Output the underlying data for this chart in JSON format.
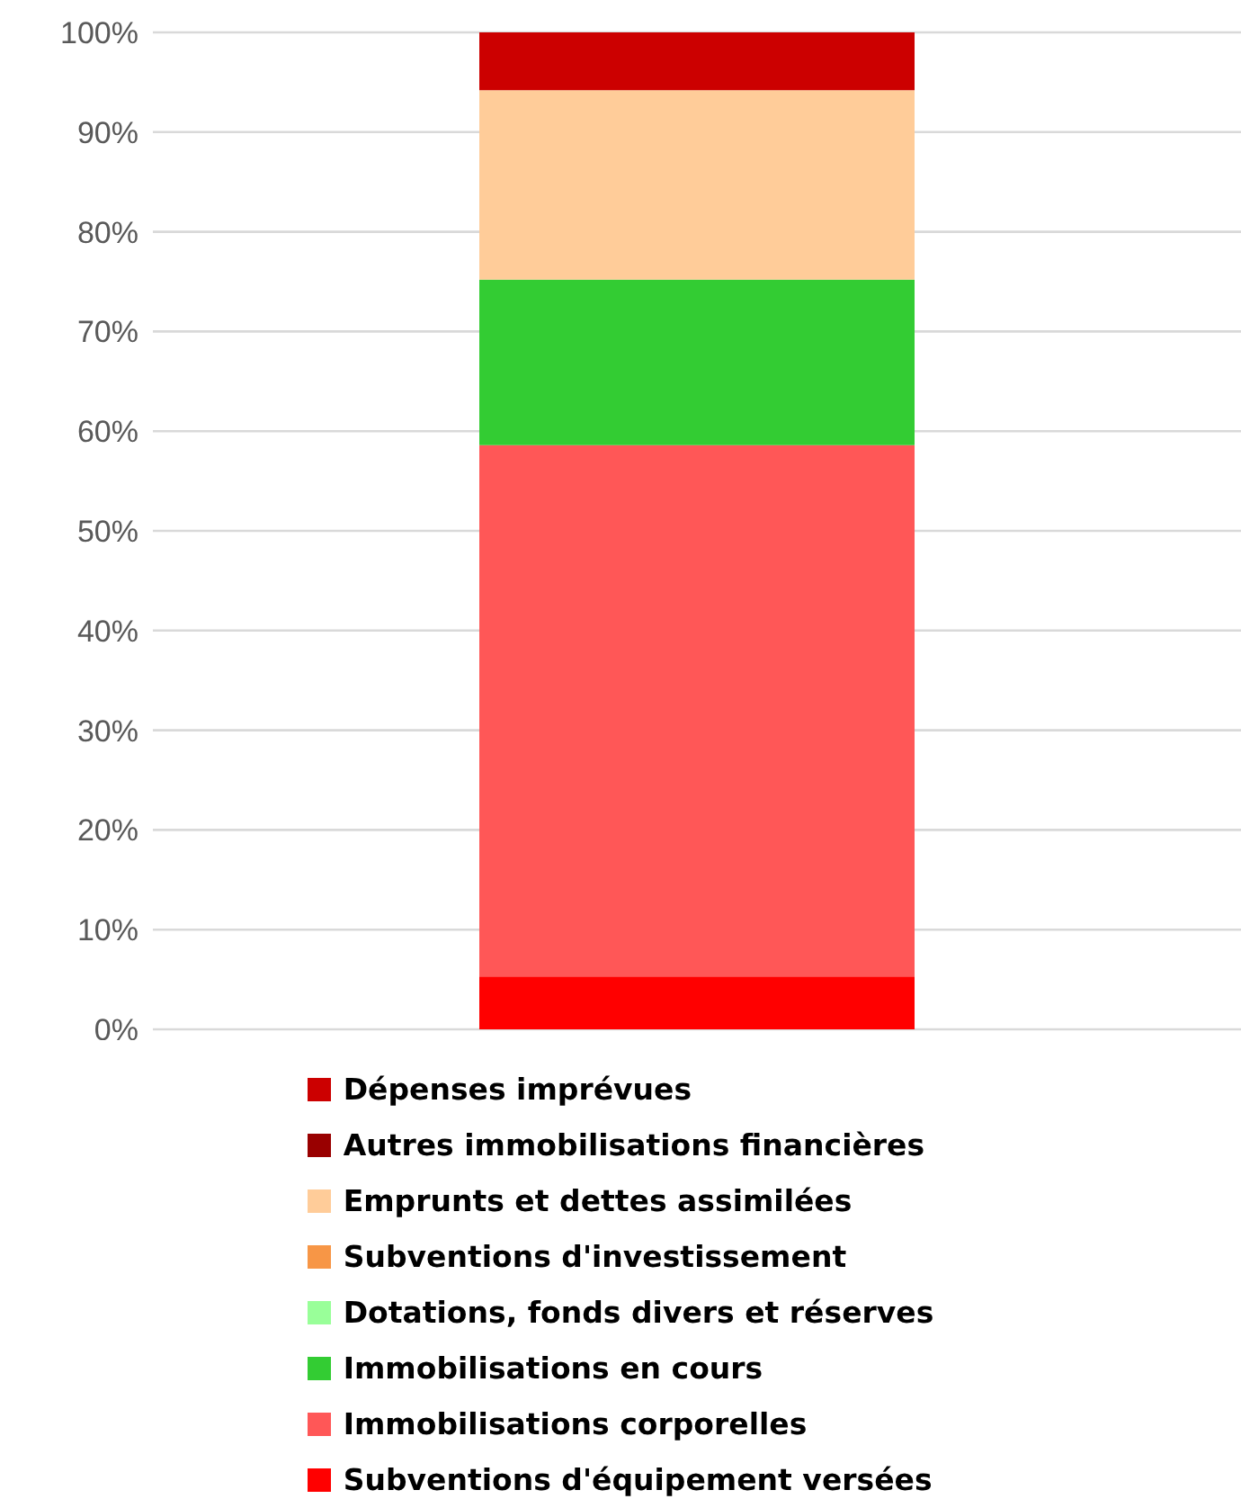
{
  "chart_data": {
    "type": "bar",
    "stacked": true,
    "categories": [
      null
    ],
    "series": [
      {
        "name": "Subventions d'équipement versées",
        "color": "#ff0000",
        "values": [
          5.3
        ]
      },
      {
        "name": "Immobilisations corporelles",
        "color": "#ff5757",
        "values": [
          53.3
        ]
      },
      {
        "name": "Immobilisations en cours",
        "color": "#33cc33",
        "values": [
          16.6
        ]
      },
      {
        "name": "Dotations, fonds divers et réserves",
        "color": "#99ff99",
        "values": [
          0
        ]
      },
      {
        "name": "Subventions d'investissement",
        "color": "#f79646",
        "values": [
          0
        ]
      },
      {
        "name": "Emprunts et dettes assimilées",
        "color": "#ffcc99",
        "values": [
          19.0
        ]
      },
      {
        "name": "Autres immobilisations financières",
        "color": "#990000",
        "values": [
          0
        ]
      },
      {
        "name": "Dépenses imprévues",
        "color": "#cc0000",
        "values": [
          5.8
        ]
      }
    ],
    "ylim": [
      0,
      100
    ],
    "yticks": [
      {
        "value": 0,
        "label": "0%"
      },
      {
        "value": 10,
        "label": "10%"
      },
      {
        "value": 20,
        "label": "20%"
      },
      {
        "value": 30,
        "label": "30%"
      },
      {
        "value": 40,
        "label": "40%"
      },
      {
        "value": 50,
        "label": "50%"
      },
      {
        "value": 60,
        "label": "60%"
      },
      {
        "value": 70,
        "label": "70%"
      },
      {
        "value": 80,
        "label": "80%"
      },
      {
        "value": 90,
        "label": "90%"
      },
      {
        "value": 100,
        "label": "100%"
      }
    ],
    "grid": "y",
    "legend": "bottom"
  }
}
